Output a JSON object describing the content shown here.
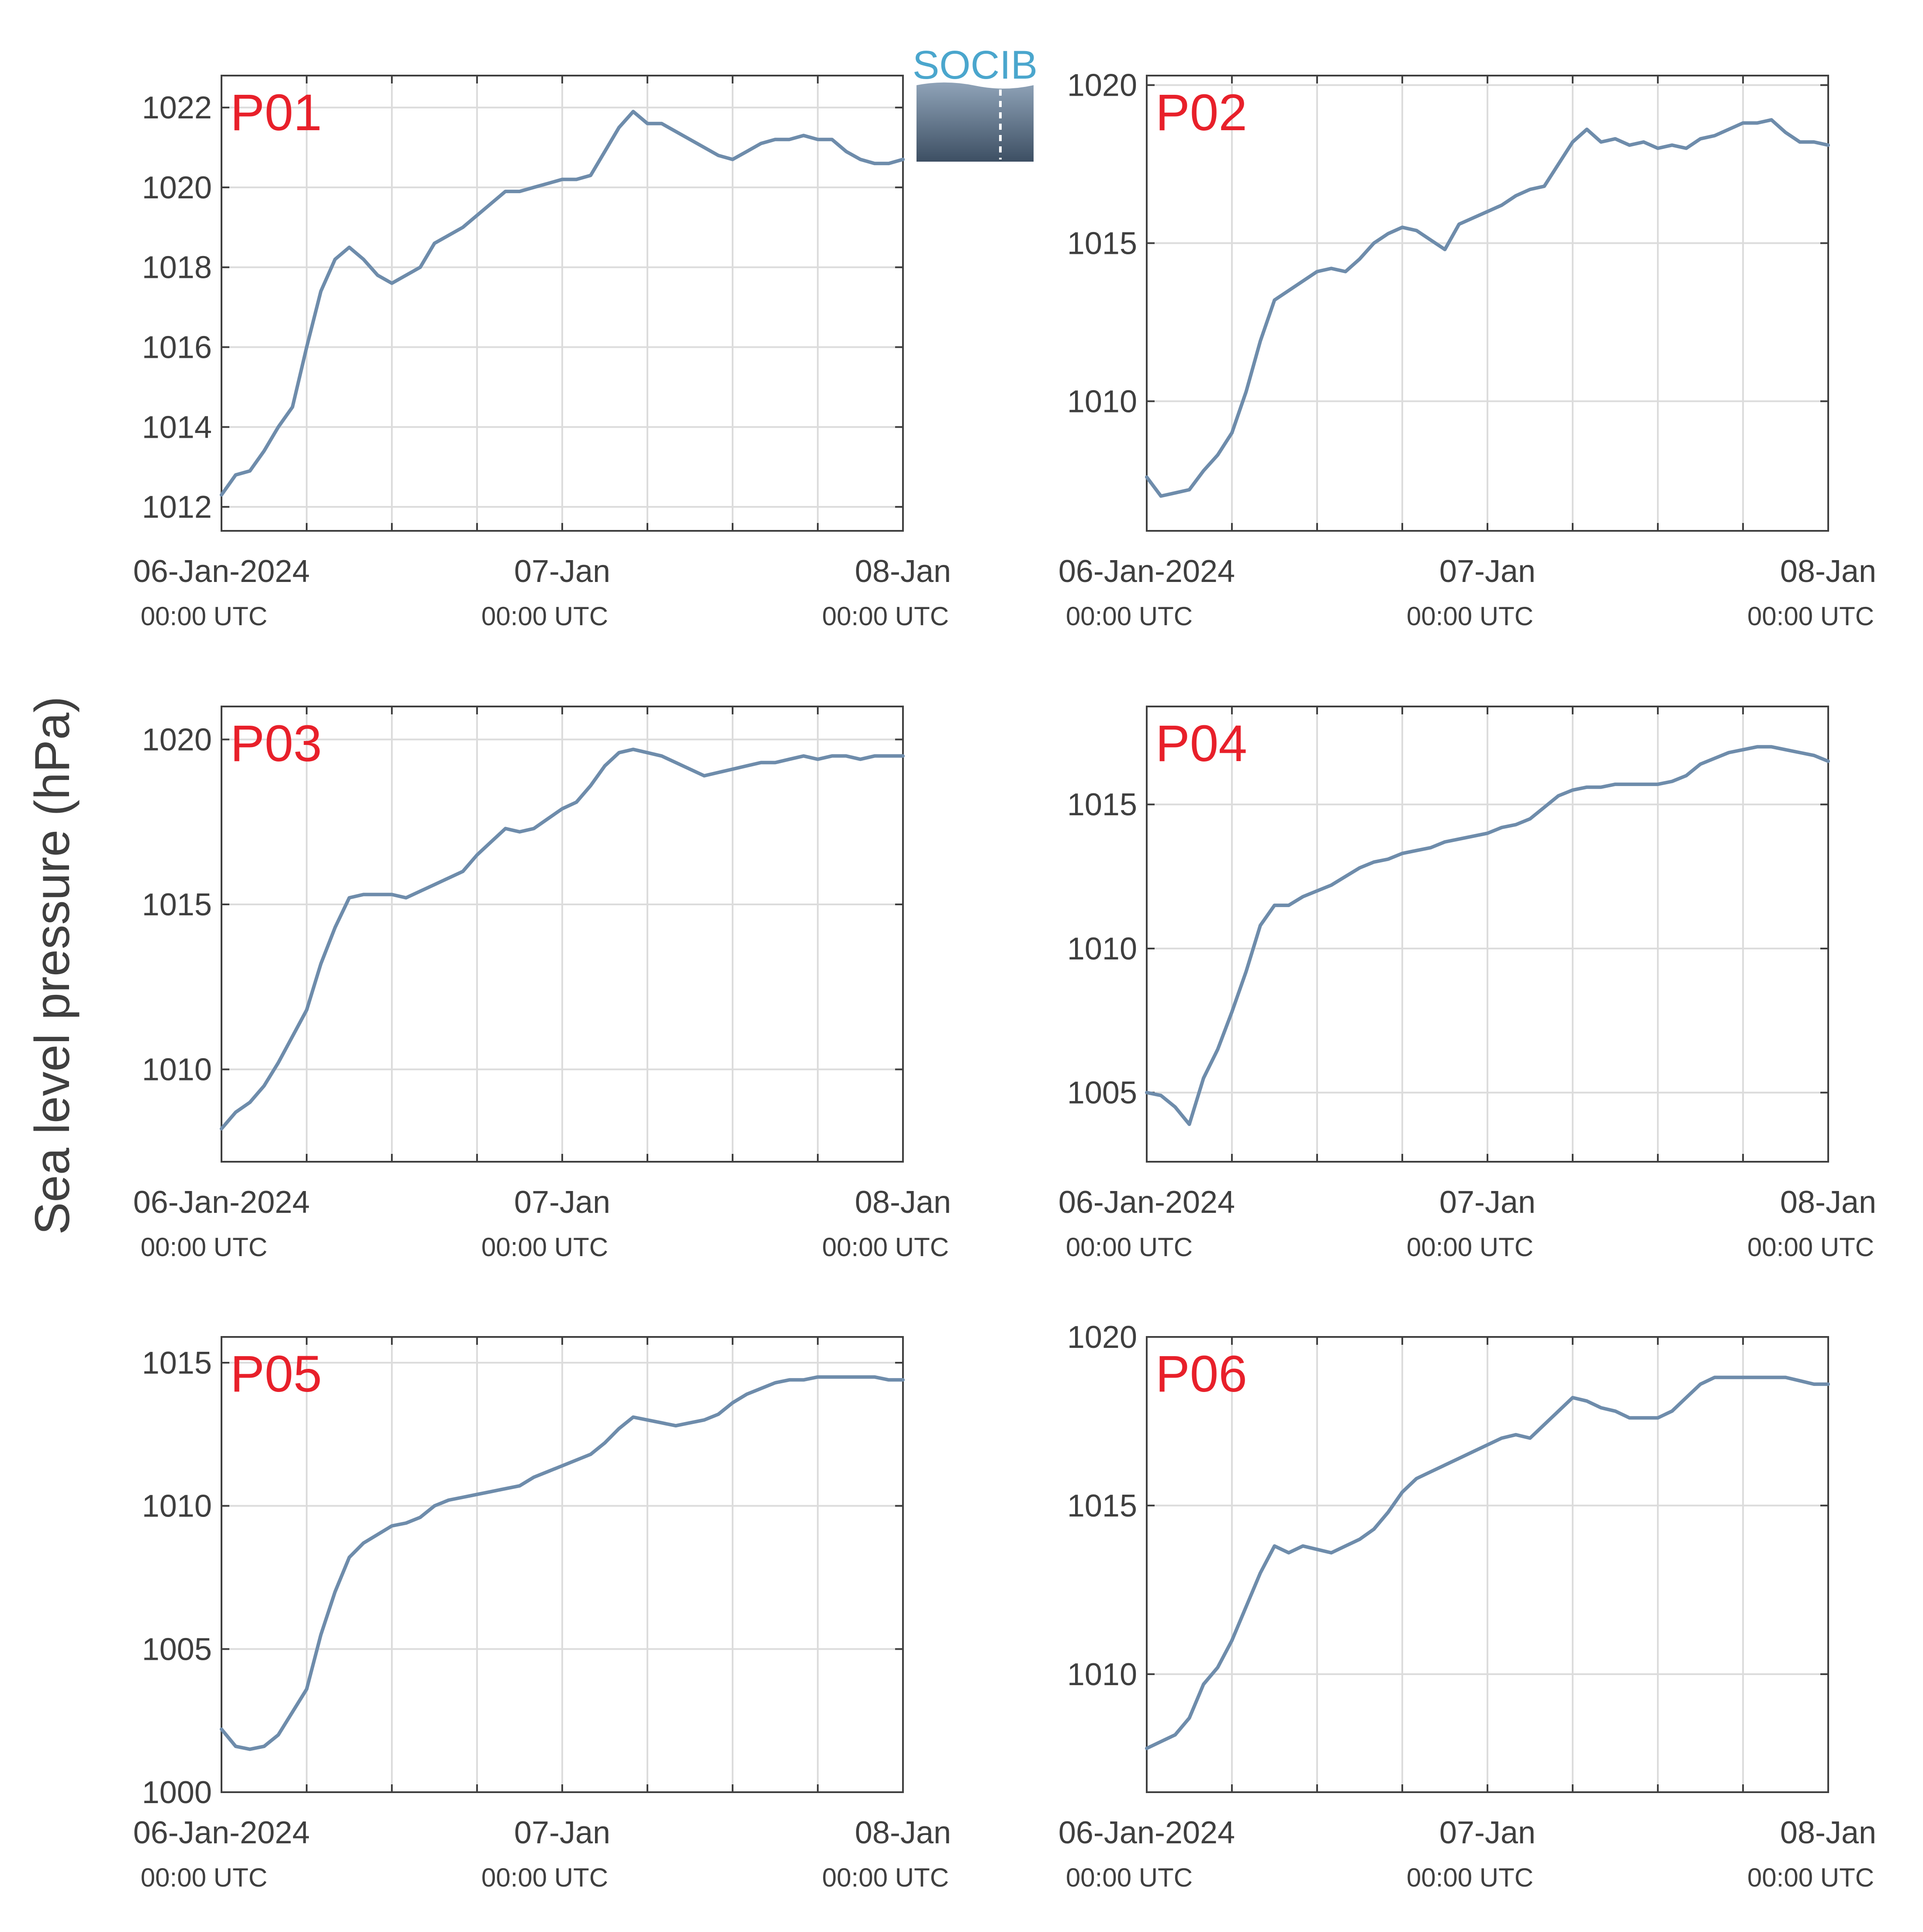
{
  "figure": {
    "ylabel": "Sea level pressure (hPa)",
    "logo_text": "SOCIB",
    "line_color": "#6e8cab",
    "label_color": "#e8202a",
    "grid_color": "#dcdcdc",
    "axis_color": "#3f3f3f"
  },
  "chart_data": [
    {
      "type": "line",
      "title": "P01",
      "x_unit": "hours since 06-Jan-2024 00:00 UTC",
      "xlim": [
        0,
        48
      ],
      "xticks": [
        0,
        24,
        48
      ],
      "xtick_labels": [
        "06-Jan-2024",
        "07-Jan",
        "08-Jan"
      ],
      "xtick_sublabels": [
        "00:00 UTC",
        "00:00 UTC",
        "00:00 UTC"
      ],
      "ylim": [
        1011.4,
        1022.8
      ],
      "yticks": [
        1012,
        1014,
        1016,
        1018,
        1020,
        1022
      ],
      "grid": true,
      "series": [
        {
          "x": [
            0,
            1,
            2,
            3,
            4,
            5,
            6,
            7,
            8,
            9,
            10,
            11,
            12,
            13,
            14,
            15,
            16,
            17,
            18,
            19,
            20,
            21,
            22,
            23,
            24,
            25,
            26,
            27,
            28,
            29,
            30,
            31,
            32,
            33,
            34,
            35,
            36,
            37,
            38,
            39,
            40,
            41,
            42,
            43,
            44,
            45,
            46,
            47,
            48
          ],
          "y": [
            1012.3,
            1012.8,
            1012.9,
            1013.4,
            1014.0,
            1014.5,
            1016.0,
            1017.4,
            1018.2,
            1018.5,
            1018.2,
            1017.8,
            1017.6,
            1017.8,
            1018.0,
            1018.6,
            1018.8,
            1019.0,
            1019.3,
            1019.6,
            1019.9,
            1019.9,
            1020.0,
            1020.1,
            1020.2,
            1020.2,
            1020.3,
            1020.9,
            1021.5,
            1021.9,
            1021.6,
            1021.6,
            1021.4,
            1021.2,
            1021.0,
            1020.8,
            1020.7,
            1020.9,
            1021.1,
            1021.2,
            1021.2,
            1021.3,
            1021.2,
            1021.2,
            1020.9,
            1020.7,
            1020.6,
            1020.6,
            1020.7
          ]
        }
      ]
    },
    {
      "type": "line",
      "title": "P02",
      "x_unit": "hours since 06-Jan-2024 00:00 UTC",
      "xlim": [
        0,
        48
      ],
      "xticks": [
        0,
        24,
        48
      ],
      "xtick_labels": [
        "06-Jan-2024",
        "07-Jan",
        "08-Jan"
      ],
      "xtick_sublabels": [
        "00:00 UTC",
        "00:00 UTC",
        "00:00 UTC"
      ],
      "ylim": [
        1005.9,
        1020.3
      ],
      "yticks": [
        1010,
        1015,
        1020
      ],
      "grid": true,
      "series": [
        {
          "x": [
            0,
            1,
            2,
            3,
            4,
            5,
            6,
            7,
            8,
            9,
            10,
            11,
            12,
            13,
            14,
            15,
            16,
            17,
            18,
            19,
            20,
            21,
            22,
            23,
            24,
            25,
            26,
            27,
            28,
            29,
            30,
            31,
            32,
            33,
            34,
            35,
            36,
            37,
            38,
            39,
            40,
            41,
            42,
            43,
            44,
            45,
            46,
            47,
            48
          ],
          "y": [
            1007.6,
            1007.0,
            1007.1,
            1007.2,
            1007.8,
            1008.3,
            1009.0,
            1010.3,
            1011.9,
            1013.2,
            1013.5,
            1013.8,
            1014.1,
            1014.2,
            1014.1,
            1014.5,
            1015.0,
            1015.3,
            1015.5,
            1015.4,
            1015.1,
            1014.8,
            1015.6,
            1015.8,
            1016.0,
            1016.2,
            1016.5,
            1016.7,
            1016.8,
            1017.5,
            1018.2,
            1018.6,
            1018.2,
            1018.3,
            1018.1,
            1018.2,
            1018.0,
            1018.1,
            1018.0,
            1018.3,
            1018.4,
            1018.6,
            1018.8,
            1018.8,
            1018.9,
            1018.5,
            1018.2,
            1018.2,
            1018.1
          ]
        }
      ]
    },
    {
      "type": "line",
      "title": "P03",
      "x_unit": "hours since 06-Jan-2024 00:00 UTC",
      "xlim": [
        0,
        48
      ],
      "xticks": [
        0,
        24,
        48
      ],
      "xtick_labels": [
        "06-Jan-2024",
        "07-Jan",
        "08-Jan"
      ],
      "xtick_sublabels": [
        "00:00 UTC",
        "00:00 UTC",
        "00:00 UTC"
      ],
      "ylim": [
        1007.2,
        1021.0
      ],
      "yticks": [
        1010,
        1015,
        1020
      ],
      "grid": true,
      "series": [
        {
          "x": [
            0,
            1,
            2,
            3,
            4,
            5,
            6,
            7,
            8,
            9,
            10,
            11,
            12,
            13,
            14,
            15,
            16,
            17,
            18,
            19,
            20,
            21,
            22,
            23,
            24,
            25,
            26,
            27,
            28,
            29,
            30,
            31,
            32,
            33,
            34,
            35,
            36,
            37,
            38,
            39,
            40,
            41,
            42,
            43,
            44,
            45,
            46,
            47,
            48
          ],
          "y": [
            1008.2,
            1008.7,
            1009.0,
            1009.5,
            1010.2,
            1011.0,
            1011.8,
            1013.2,
            1014.3,
            1015.2,
            1015.3,
            1015.3,
            1015.3,
            1015.2,
            1015.4,
            1015.6,
            1015.8,
            1016.0,
            1016.5,
            1016.9,
            1017.3,
            1017.2,
            1017.3,
            1017.6,
            1017.9,
            1018.1,
            1018.6,
            1019.2,
            1019.6,
            1019.7,
            1019.6,
            1019.5,
            1019.3,
            1019.1,
            1018.9,
            1019.0,
            1019.1,
            1019.2,
            1019.3,
            1019.3,
            1019.4,
            1019.5,
            1019.4,
            1019.5,
            1019.5,
            1019.4,
            1019.5,
            1019.5,
            1019.5
          ]
        }
      ]
    },
    {
      "type": "line",
      "title": "P04",
      "x_unit": "hours since 06-Jan-2024 00:00 UTC",
      "xlim": [
        0,
        48
      ],
      "xticks": [
        0,
        24,
        48
      ],
      "xtick_labels": [
        "06-Jan-2024",
        "07-Jan",
        "08-Jan"
      ],
      "xtick_sublabels": [
        "00:00 UTC",
        "00:00 UTC",
        "00:00 UTC"
      ],
      "ylim": [
        1002.6,
        1018.4
      ],
      "yticks": [
        1005,
        1010,
        1015
      ],
      "grid": true,
      "series": [
        {
          "x": [
            0,
            1,
            2,
            3,
            4,
            5,
            6,
            7,
            8,
            9,
            10,
            11,
            12,
            13,
            14,
            15,
            16,
            17,
            18,
            19,
            20,
            21,
            22,
            23,
            24,
            25,
            26,
            27,
            28,
            29,
            30,
            31,
            32,
            33,
            34,
            35,
            36,
            37,
            38,
            39,
            40,
            41,
            42,
            43,
            44,
            45,
            46,
            47,
            48
          ],
          "y": [
            1005.0,
            1004.9,
            1004.5,
            1003.9,
            1005.5,
            1006.5,
            1007.8,
            1009.2,
            1010.8,
            1011.5,
            1011.5,
            1011.8,
            1012.0,
            1012.2,
            1012.5,
            1012.8,
            1013.0,
            1013.1,
            1013.3,
            1013.4,
            1013.5,
            1013.7,
            1013.8,
            1013.9,
            1014.0,
            1014.2,
            1014.3,
            1014.5,
            1014.9,
            1015.3,
            1015.5,
            1015.6,
            1015.6,
            1015.7,
            1015.7,
            1015.7,
            1015.7,
            1015.8,
            1016.0,
            1016.4,
            1016.6,
            1016.8,
            1016.9,
            1017.0,
            1017.0,
            1016.9,
            1016.8,
            1016.7,
            1016.5
          ]
        }
      ]
    },
    {
      "type": "line",
      "title": "P05",
      "x_unit": "hours since 06-Jan-2024 00:00 UTC",
      "xlim": [
        0,
        48
      ],
      "xticks": [
        0,
        24,
        48
      ],
      "xtick_labels": [
        "06-Jan-2024",
        "07-Jan",
        "08-Jan"
      ],
      "xtick_sublabels": [
        "00:00 UTC",
        "00:00 UTC",
        "00:00 UTC"
      ],
      "ylim": [
        1000.0,
        1015.9
      ],
      "yticks": [
        1000,
        1005,
        1010,
        1015
      ],
      "grid": true,
      "series": [
        {
          "x": [
            0,
            1,
            2,
            3,
            4,
            5,
            6,
            7,
            8,
            9,
            10,
            11,
            12,
            13,
            14,
            15,
            16,
            17,
            18,
            19,
            20,
            21,
            22,
            23,
            24,
            25,
            26,
            27,
            28,
            29,
            30,
            31,
            32,
            33,
            34,
            35,
            36,
            37,
            38,
            39,
            40,
            41,
            42,
            43,
            44,
            45,
            46,
            47,
            48
          ],
          "y": [
            1002.2,
            1001.6,
            1001.5,
            1001.6,
            1002.0,
            1002.8,
            1003.6,
            1005.5,
            1007.0,
            1008.2,
            1008.7,
            1009.0,
            1009.3,
            1009.4,
            1009.6,
            1010.0,
            1010.2,
            1010.3,
            1010.4,
            1010.5,
            1010.6,
            1010.7,
            1011.0,
            1011.2,
            1011.4,
            1011.6,
            1011.8,
            1012.2,
            1012.7,
            1013.1,
            1013.0,
            1012.9,
            1012.8,
            1012.9,
            1013.0,
            1013.2,
            1013.6,
            1013.9,
            1014.1,
            1014.3,
            1014.4,
            1014.4,
            1014.5,
            1014.5,
            1014.5,
            1014.5,
            1014.5,
            1014.4,
            1014.4
          ]
        }
      ]
    },
    {
      "type": "line",
      "title": "P06",
      "x_unit": "hours since 06-Jan-2024 00:00 UTC",
      "xlim": [
        0,
        48
      ],
      "xticks": [
        0,
        24,
        48
      ],
      "xtick_labels": [
        "06-Jan-2024",
        "07-Jan",
        "08-Jan"
      ],
      "xtick_sublabels": [
        "00:00 UTC",
        "00:00 UTC",
        "00:00 UTC"
      ],
      "ylim": [
        1006.5,
        1020.0
      ],
      "yticks": [
        1010,
        1015,
        1020
      ],
      "grid": true,
      "series": [
        {
          "x": [
            0,
            1,
            2,
            3,
            4,
            5,
            6,
            7,
            8,
            9,
            10,
            11,
            12,
            13,
            14,
            15,
            16,
            17,
            18,
            19,
            20,
            21,
            22,
            23,
            24,
            25,
            26,
            27,
            28,
            29,
            30,
            31,
            32,
            33,
            34,
            35,
            36,
            37,
            38,
            39,
            40,
            41,
            42,
            43,
            44,
            45,
            46,
            47,
            48
          ],
          "y": [
            1007.8,
            1008.0,
            1008.2,
            1008.7,
            1009.7,
            1010.2,
            1011.0,
            1012.0,
            1013.0,
            1013.8,
            1013.6,
            1013.8,
            1013.7,
            1013.6,
            1013.8,
            1014.0,
            1014.3,
            1014.8,
            1015.4,
            1015.8,
            1016.0,
            1016.2,
            1016.4,
            1016.6,
            1016.8,
            1017.0,
            1017.1,
            1017.0,
            1017.4,
            1017.8,
            1018.2,
            1018.1,
            1017.9,
            1017.8,
            1017.6,
            1017.6,
            1017.6,
            1017.8,
            1018.2,
            1018.6,
            1018.8,
            1018.8,
            1018.8,
            1018.8,
            1018.8,
            1018.8,
            1018.7,
            1018.6,
            1018.6
          ]
        }
      ]
    }
  ]
}
